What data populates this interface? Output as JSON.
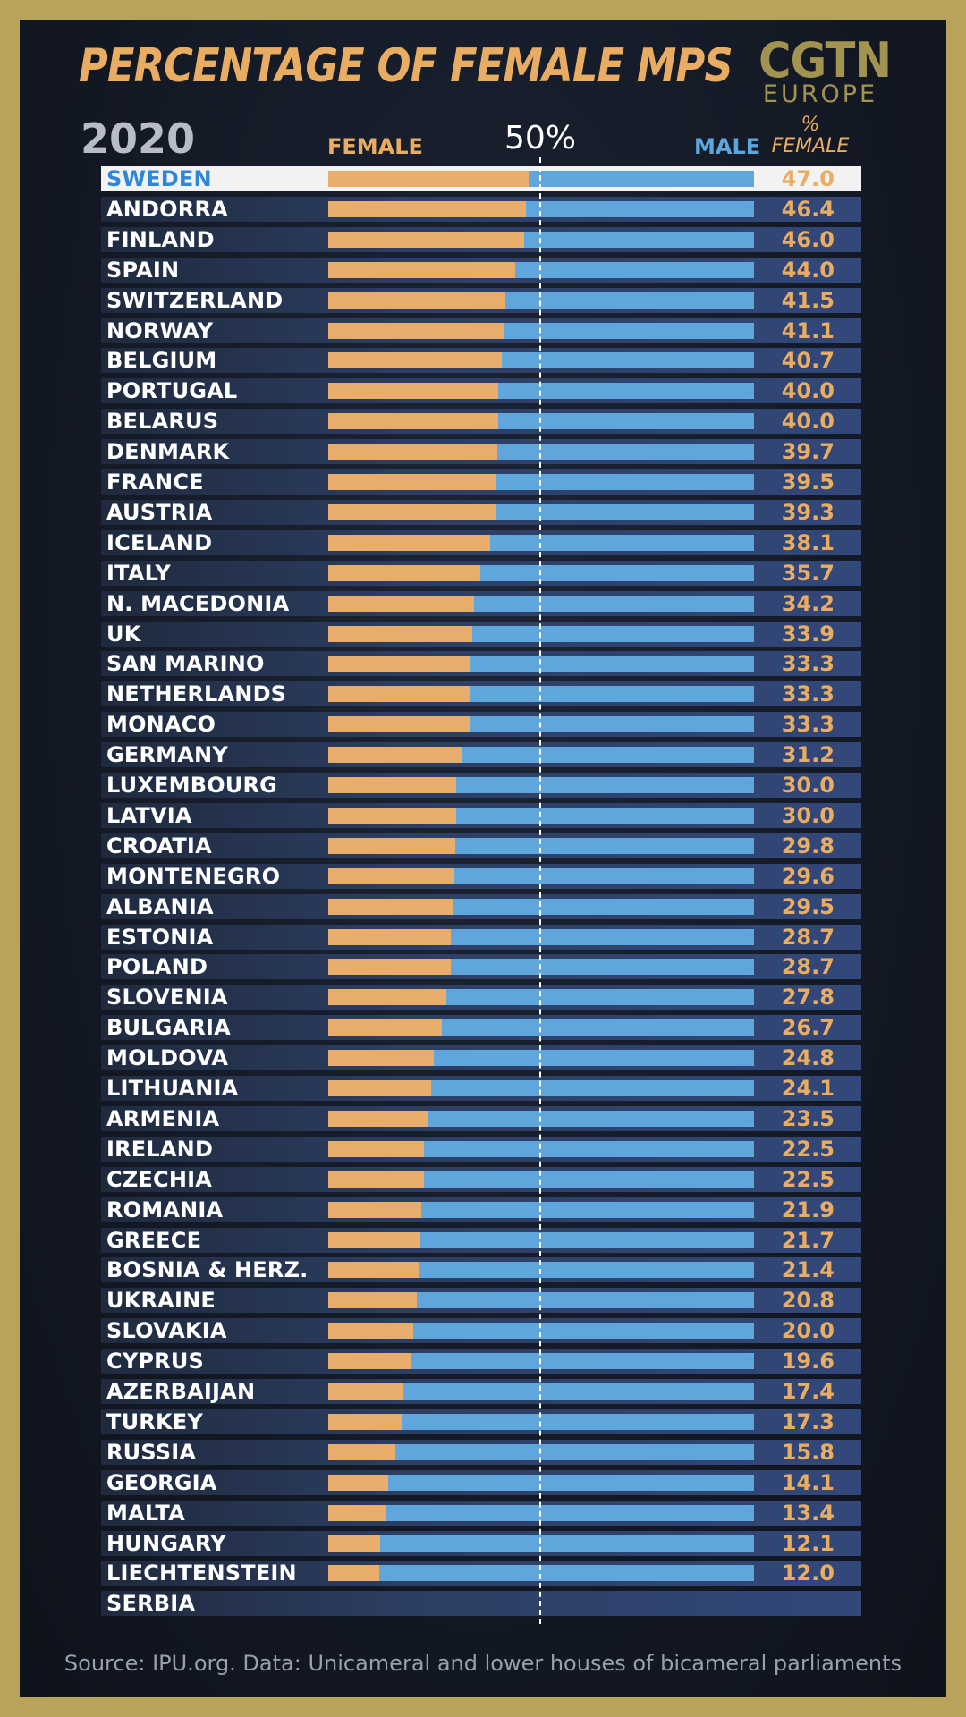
{
  "header": {
    "title": "PERCENTAGE OF FEMALE MPS",
    "year": "2020",
    "logo_main": "CGTN",
    "logo_sub": "EUROPE",
    "female_label": "FEMALE",
    "male_label": "MALE",
    "midpoint_label": "50%",
    "pct_label_line1": "%",
    "pct_label_line2": "FEMALE"
  },
  "source": "Source: IPU.org. Data: Unicameral and lower houses of bicameral parliaments",
  "colors": {
    "female": "#e8ad6a",
    "male": "#5ea6dc",
    "highlight": "#2f86d6"
  },
  "chart_data": {
    "type": "bar",
    "orientation": "horizontal",
    "stacked": true,
    "xlim": [
      0,
      100
    ],
    "reference_line": 50,
    "highlight": "SWEDEN",
    "categories": [
      "SWEDEN",
      "ANDORRA",
      "FINLAND",
      "SPAIN",
      "SWITZERLAND",
      "NORWAY",
      "BELGIUM",
      "PORTUGAL",
      "BELARUS",
      "DENMARK",
      "FRANCE",
      "AUSTRIA",
      "ICELAND",
      "ITALY",
      "N. MACEDONIA",
      "UK",
      "SAN MARINO",
      "NETHERLANDS",
      "MONACO",
      "GERMANY",
      "LUXEMBOURG",
      "LATVIA",
      "CROATIA",
      "MONTENEGRO",
      "ALBANIA",
      "ESTONIA",
      "POLAND",
      "SLOVENIA",
      "BULGARIA",
      "MOLDOVA",
      "LITHUANIA",
      "ARMENIA",
      "IRELAND",
      "CZECHIA",
      "ROMANIA",
      "GREECE",
      "BOSNIA & HERZ.",
      "UKRAINE",
      "SLOVAKIA",
      "CYPRUS",
      "AZERBAIJAN",
      "TURKEY",
      "RUSSIA",
      "GEORGIA",
      "MALTA",
      "HUNGARY",
      "LIECHTENSTEIN",
      "SERBIA"
    ],
    "values": [
      "47.0",
      "46.4",
      "46.0",
      "44.0",
      "41.5",
      "41.1",
      "40.7",
      "40.0",
      "40.0",
      "39.7",
      "39.5",
      "39.3",
      "38.1",
      "35.7",
      "34.2",
      "33.9",
      "33.3",
      "33.3",
      "33.3",
      "31.2",
      "30.0",
      "30.0",
      "29.8",
      "29.6",
      "29.5",
      "28.7",
      "28.7",
      "27.8",
      "26.7",
      "24.8",
      "24.1",
      "23.5",
      "22.5",
      "22.5",
      "21.9",
      "21.7",
      "21.4",
      "20.8",
      "20.0",
      "19.6",
      "17.4",
      "17.3",
      "15.8",
      "14.1",
      "13.4",
      "12.1",
      "12.0",
      ""
    ],
    "series": [
      {
        "name": "FEMALE"
      },
      {
        "name": "MALE"
      }
    ]
  }
}
